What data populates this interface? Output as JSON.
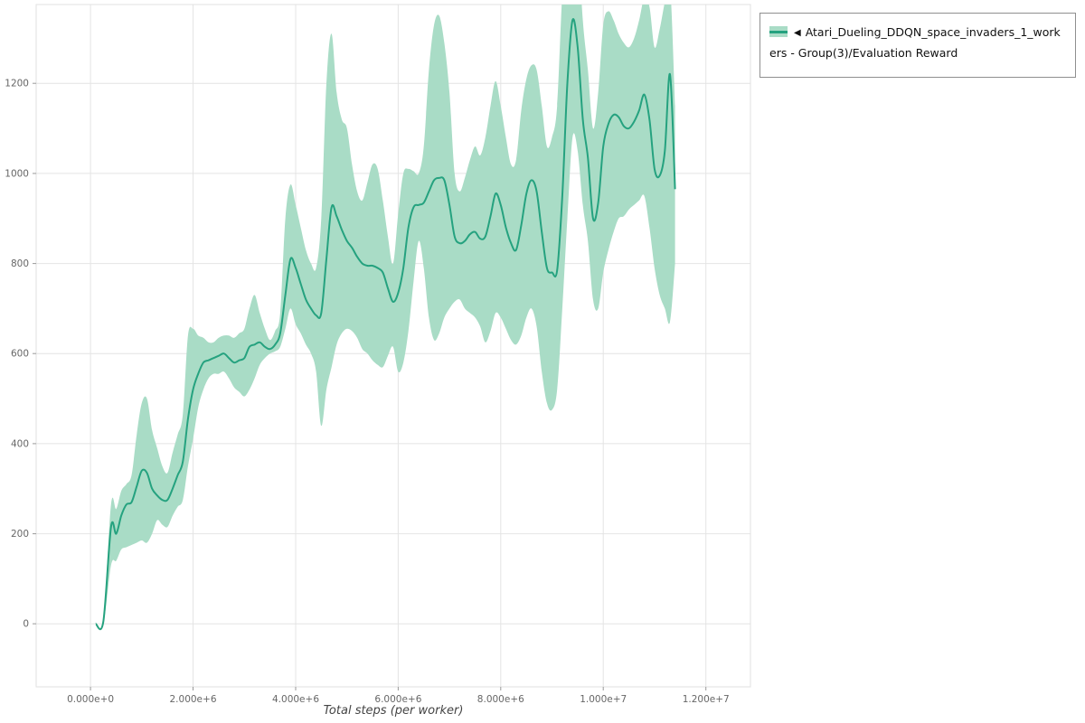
{
  "chart_data": {
    "type": "line",
    "title": "",
    "xlabel": "Total steps (per worker)",
    "ylabel": "",
    "x_unit": "millions of steps",
    "x_domain": [
      -1.06,
      12.87
    ],
    "y_domain": [
      -140,
      1375
    ],
    "grid": true,
    "legend_position": "top-right",
    "x_ticks": [
      {
        "value": 0,
        "label": "0.000e+0"
      },
      {
        "value": 2,
        "label": "2.000e+6"
      },
      {
        "value": 4,
        "label": "4.000e+6"
      },
      {
        "value": 6,
        "label": "6.000e+6"
      },
      {
        "value": 8,
        "label": "8.000e+6"
      },
      {
        "value": 10,
        "label": "1.000e+7"
      },
      {
        "value": 12,
        "label": "1.200e+7"
      }
    ],
    "y_ticks": [
      {
        "value": 0,
        "label": "0"
      },
      {
        "value": 200,
        "label": "200"
      },
      {
        "value": 400,
        "label": "400"
      },
      {
        "value": 600,
        "label": "600"
      },
      {
        "value": 800,
        "label": "800"
      },
      {
        "value": 1000,
        "label": "1000"
      },
      {
        "value": 1200,
        "label": "1200"
      }
    ],
    "series": [
      {
        "name": "Atari_Dueling_DDQN_space_invaders_1_workers - Group(3)/Evaluation Reward",
        "legend_marker": "◀",
        "line_color": "#25a27f",
        "band_color": "#a9dcc6",
        "x": [
          0.1,
          0.25,
          0.4,
          0.5,
          0.6,
          0.7,
          0.8,
          0.9,
          1.0,
          1.1,
          1.2,
          1.3,
          1.4,
          1.5,
          1.6,
          1.7,
          1.8,
          1.9,
          2.0,
          2.1,
          2.2,
          2.3,
          2.4,
          2.5,
          2.6,
          2.7,
          2.8,
          2.9,
          3.0,
          3.1,
          3.2,
          3.3,
          3.4,
          3.5,
          3.6,
          3.7,
          3.8,
          3.9,
          4.0,
          4.1,
          4.2,
          4.3,
          4.4,
          4.5,
          4.6,
          4.7,
          4.8,
          4.9,
          5.0,
          5.1,
          5.2,
          5.3,
          5.4,
          5.5,
          5.6,
          5.7,
          5.8,
          5.9,
          6.0,
          6.1,
          6.2,
          6.3,
          6.4,
          6.5,
          6.6,
          6.7,
          6.8,
          6.9,
          7.0,
          7.1,
          7.2,
          7.3,
          7.4,
          7.5,
          7.6,
          7.7,
          7.8,
          7.9,
          8.0,
          8.1,
          8.2,
          8.3,
          8.4,
          8.5,
          8.6,
          8.7,
          8.8,
          8.9,
          9.0,
          9.1,
          9.2,
          9.3,
          9.4,
          9.5,
          9.6,
          9.7,
          9.8,
          9.9,
          10.0,
          10.1,
          10.2,
          10.3,
          10.4,
          10.5,
          10.6,
          10.7,
          10.8,
          10.9,
          11.0,
          11.1,
          11.2,
          11.3,
          11.4
        ],
        "mean": [
          0,
          5,
          215,
          200,
          240,
          265,
          270,
          305,
          340,
          335,
          300,
          285,
          275,
          275,
          300,
          330,
          360,
          455,
          520,
          555,
          580,
          585,
          590,
          595,
          600,
          590,
          580,
          585,
          590,
          615,
          620,
          625,
          615,
          610,
          620,
          645,
          730,
          810,
          790,
          755,
          720,
          700,
          685,
          690,
          810,
          925,
          905,
          875,
          850,
          835,
          815,
          800,
          795,
          795,
          790,
          780,
          745,
          715,
          735,
          790,
          880,
          925,
          930,
          935,
          960,
          985,
          990,
          985,
          930,
          860,
          845,
          850,
          865,
          870,
          855,
          860,
          905,
          955,
          930,
          880,
          845,
          830,
          885,
          955,
          985,
          960,
          870,
          790,
          780,
          785,
          950,
          1200,
          1340,
          1280,
          1120,
          1035,
          900,
          935,
          1060,
          1110,
          1130,
          1125,
          1105,
          1100,
          1115,
          1140,
          1175,
          1120,
          1010,
          995,
          1050,
          1220,
          965
        ],
        "lower": [
          0,
          0,
          130,
          140,
          165,
          170,
          175,
          180,
          185,
          180,
          200,
          230,
          220,
          215,
          240,
          260,
          275,
          350,
          410,
          480,
          520,
          545,
          555,
          555,
          560,
          545,
          525,
          515,
          505,
          520,
          545,
          575,
          590,
          600,
          605,
          615,
          655,
          700,
          665,
          645,
          620,
          600,
          560,
          440,
          520,
          570,
          620,
          645,
          655,
          650,
          635,
          610,
          600,
          585,
          575,
          570,
          595,
          615,
          560,
          580,
          650,
          760,
          850,
          790,
          680,
          630,
          645,
          680,
          700,
          715,
          720,
          700,
          690,
          680,
          660,
          625,
          650,
          690,
          680,
          655,
          630,
          620,
          640,
          680,
          700,
          660,
          560,
          490,
          475,
          520,
          700,
          900,
          1080,
          1050,
          930,
          850,
          720,
          700,
          780,
          830,
          870,
          900,
          905,
          920,
          930,
          940,
          950,
          880,
          790,
          730,
          700,
          670,
          800
        ],
        "upper": [
          0,
          10,
          265,
          255,
          295,
          310,
          330,
          420,
          490,
          500,
          430,
          390,
          350,
          335,
          380,
          420,
          465,
          640,
          655,
          640,
          635,
          625,
          625,
          635,
          640,
          640,
          635,
          645,
          655,
          700,
          730,
          690,
          655,
          630,
          650,
          690,
          900,
          975,
          930,
          880,
          830,
          800,
          790,
          900,
          1200,
          1310,
          1180,
          1120,
          1100,
          1020,
          960,
          940,
          980,
          1020,
          1010,
          940,
          860,
          800,
          910,
          1000,
          1010,
          1005,
          1000,
          1060,
          1230,
          1330,
          1350,
          1290,
          1180,
          1000,
          960,
          990,
          1030,
          1060,
          1040,
          1080,
          1150,
          1205,
          1150,
          1080,
          1020,
          1030,
          1140,
          1210,
          1240,
          1230,
          1150,
          1060,
          1080,
          1150,
          1400,
          1550,
          1600,
          1520,
          1340,
          1230,
          1100,
          1180,
          1330,
          1360,
          1340,
          1310,
          1290,
          1280,
          1300,
          1340,
          1390,
          1370,
          1280,
          1320,
          1380,
          1420,
          1150
        ]
      }
    ]
  }
}
